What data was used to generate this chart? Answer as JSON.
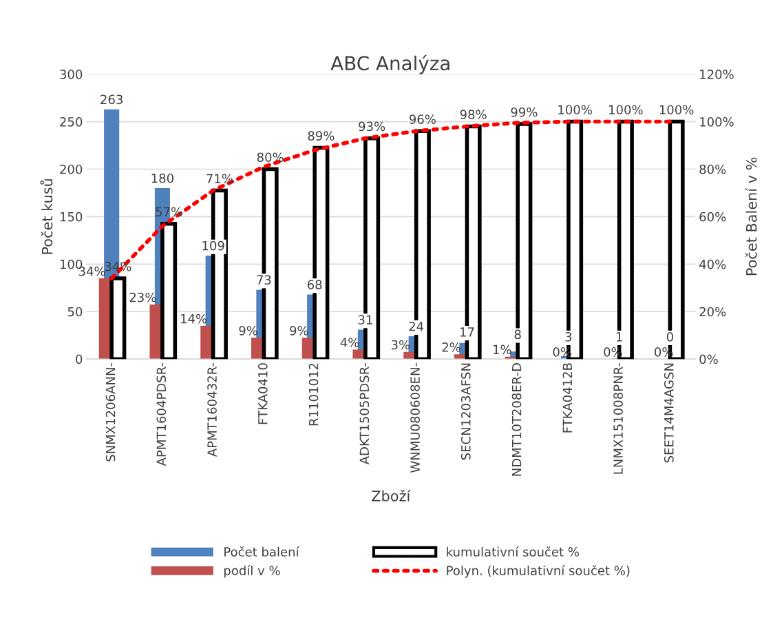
{
  "chart_data": {
    "type": "bar",
    "title": "ABC Analýza",
    "xlabel": "Zboží",
    "ylabel": "Počet kusů",
    "y2label": "Počet Balení v %",
    "categories": [
      "SNMX1206ANN-",
      "APMT1604PDSR-",
      "APMT160432R-",
      "FTKA0410",
      "R1101012",
      "ADKT1505PDSR-",
      "WNMU080608EN-",
      "SECN1203AFSN",
      "NDMT10T208ER-D",
      "FTKA0412B",
      "LNMX151008PNR-",
      "SEET14M4AGSN"
    ],
    "series": [
      {
        "name": "Počet balení",
        "color": "#4f81bd",
        "values": [
          263,
          180,
          109,
          73,
          68,
          31,
          24,
          17,
          8,
          3,
          1,
          0
        ],
        "value_labels": [
          "263",
          "180",
          "109",
          "73",
          "68",
          "31",
          "24",
          "17",
          "8",
          "3",
          "1",
          "0"
        ]
      },
      {
        "name": "podíl v %",
        "axis": "y2",
        "color": "#c0504d",
        "values": [
          34,
          23,
          14,
          9,
          9,
          4,
          3,
          2,
          1,
          0,
          0,
          0
        ],
        "value_labels": [
          "34%",
          "23%",
          "14%",
          "9%",
          "9%",
          "4%",
          "3%",
          "2%",
          "1%",
          "0%",
          "0%",
          "0%"
        ]
      },
      {
        "name": "kumulativní součet %",
        "axis": "y2",
        "color": "#000000",
        "line_style": "solid",
        "values": [
          34,
          57,
          71,
          80,
          89,
          93,
          96,
          98,
          99,
          100,
          100,
          100
        ],
        "value_labels": [
          "34%",
          "57%",
          "71%",
          "80%",
          "89%",
          "93%",
          "96%",
          "98%",
          "99%",
          "100%",
          "100%",
          "100%"
        ]
      },
      {
        "name": "Polyn. (kumulativní součet %)",
        "type": "line",
        "axis": "y2",
        "color": "#ff0000",
        "line_style": "dotted",
        "marker": "none",
        "values": [
          34,
          56,
          71,
          81,
          88,
          93,
          96,
          98,
          99.5,
          100,
          100,
          100
        ]
      }
    ],
    "ylim": [
      0,
      300
    ],
    "yticks": [
      0,
      50,
      100,
      150,
      200,
      250,
      300
    ],
    "y2lim": [
      0,
      120
    ],
    "y2ticks": [
      {
        "value": 0,
        "label": "0%"
      },
      {
        "value": 20,
        "label": "20%"
      },
      {
        "value": 40,
        "label": "40%"
      },
      {
        "value": 60,
        "label": "60%"
      },
      {
        "value": 80,
        "label": "80%"
      },
      {
        "value": 100,
        "label": "100%"
      },
      {
        "value": 120,
        "label": "120%"
      }
    ],
    "grid": "y",
    "legend": "bottom"
  }
}
